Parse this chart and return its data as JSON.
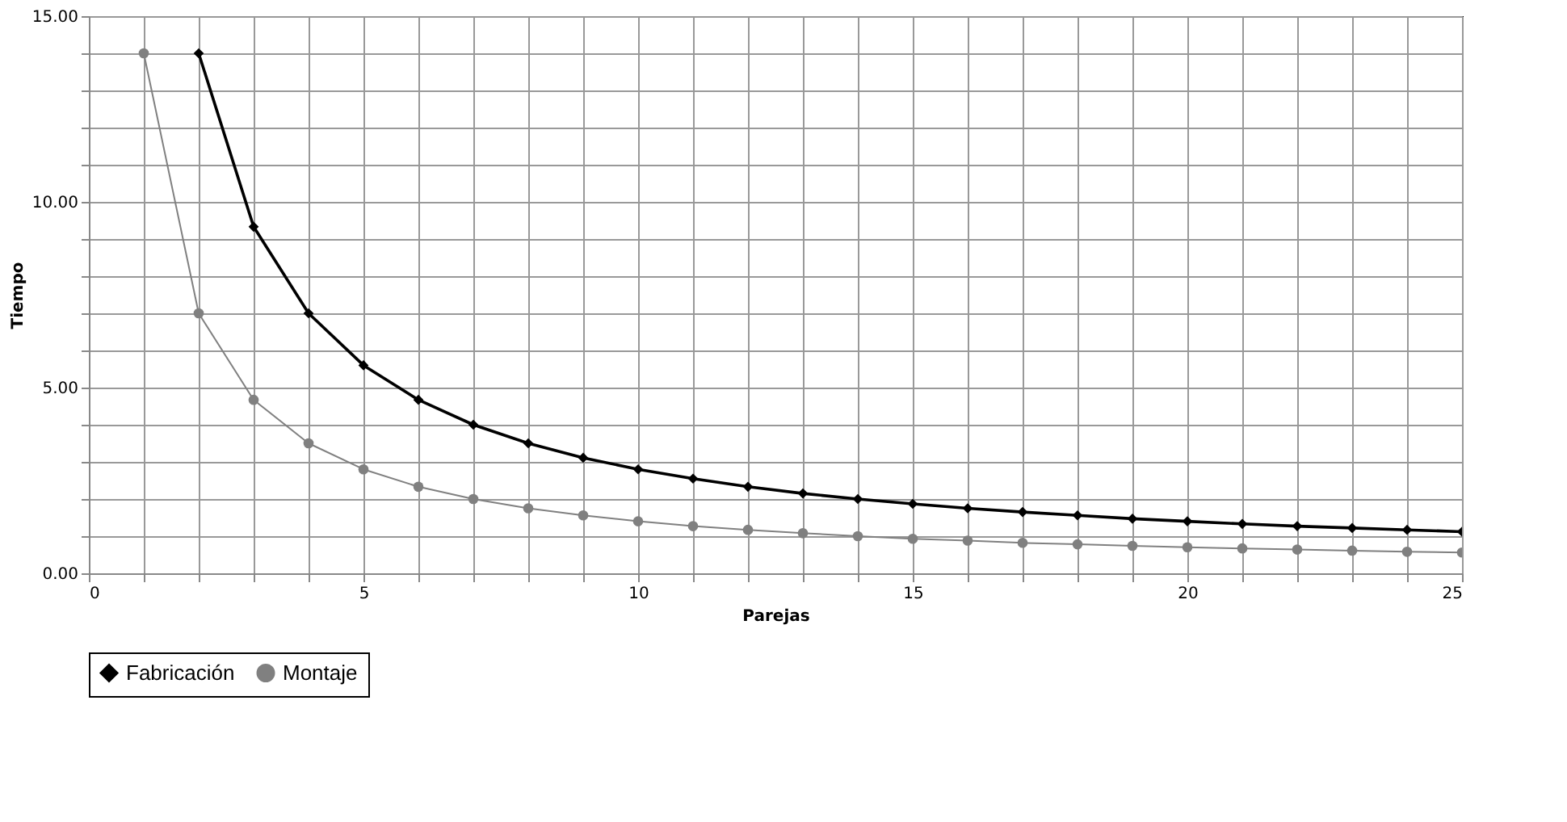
{
  "chart_data": {
    "type": "line",
    "xlabel": "Parejas",
    "ylabel": "Tiempo",
    "xlim": [
      0,
      25
    ],
    "ylim": [
      0,
      15
    ],
    "xticks": [
      0,
      {
        "value": 1,
        "label": null
      },
      {
        "value": 2,
        "label": null
      },
      {
        "value": 3,
        "label": null
      },
      {
        "value": 4,
        "label": null
      },
      5,
      {
        "value": 6,
        "label": null
      },
      {
        "value": 7,
        "label": null
      },
      {
        "value": 8,
        "label": null
      },
      {
        "value": 9,
        "label": null
      },
      10,
      {
        "value": 11,
        "label": null
      },
      {
        "value": 12,
        "label": null
      },
      {
        "value": 13,
        "label": null
      },
      {
        "value": 14,
        "label": null
      },
      15,
      {
        "value": 16,
        "label": null
      },
      {
        "value": 17,
        "label": null
      },
      {
        "value": 18,
        "label": null
      },
      {
        "value": 19,
        "label": null
      },
      20,
      {
        "value": 21,
        "label": null
      },
      {
        "value": 22,
        "label": null
      },
      {
        "value": 23,
        "label": null
      },
      {
        "value": 24,
        "label": null
      },
      25
    ],
    "yticks": [
      {
        "value": 0,
        "label": "0.00"
      },
      {
        "value": 1,
        "label": null
      },
      {
        "value": 2,
        "label": null
      },
      {
        "value": 3,
        "label": null
      },
      {
        "value": 4,
        "label": null
      },
      {
        "value": 5,
        "label": "5.00"
      },
      {
        "value": 6,
        "label": null
      },
      {
        "value": 7,
        "label": null
      },
      {
        "value": 8,
        "label": null
      },
      {
        "value": 9,
        "label": null
      },
      {
        "value": 10,
        "label": "10.00"
      },
      {
        "value": 11,
        "label": null
      },
      {
        "value": 12,
        "label": null
      },
      {
        "value": 13,
        "label": null
      },
      {
        "value": 14,
        "label": null
      },
      {
        "value": 15,
        "label": "15.00"
      }
    ],
    "grid": true,
    "legend": "bottom",
    "series": [
      {
        "name": "Fabricación",
        "color": "#000000",
        "marker": "diamond",
        "x": [
          2,
          3,
          4,
          5,
          6,
          7,
          8,
          9,
          10,
          11,
          12,
          13,
          14,
          15,
          16,
          17,
          18,
          19,
          20,
          21,
          22,
          23,
          24,
          25
        ],
        "values": [
          14.0,
          9.33,
          7.0,
          5.6,
          4.67,
          4.0,
          3.5,
          3.11,
          2.8,
          2.55,
          2.33,
          2.15,
          2.0,
          1.87,
          1.75,
          1.65,
          1.56,
          1.47,
          1.4,
          1.33,
          1.27,
          1.22,
          1.17,
          1.12
        ]
      },
      {
        "name": "Montaje",
        "color": "#808080",
        "marker": "circle",
        "x": [
          1,
          2,
          3,
          4,
          5,
          6,
          7,
          8,
          9,
          10,
          11,
          12,
          13,
          14,
          15,
          16,
          17,
          18,
          19,
          20,
          21,
          22,
          23,
          24,
          25
        ],
        "values": [
          14.0,
          7.0,
          4.67,
          3.5,
          2.8,
          2.33,
          2.0,
          1.75,
          1.56,
          1.4,
          1.27,
          1.17,
          1.08,
          1.0,
          0.93,
          0.88,
          0.82,
          0.78,
          0.74,
          0.7,
          0.67,
          0.64,
          0.61,
          0.58,
          0.56
        ]
      }
    ]
  }
}
